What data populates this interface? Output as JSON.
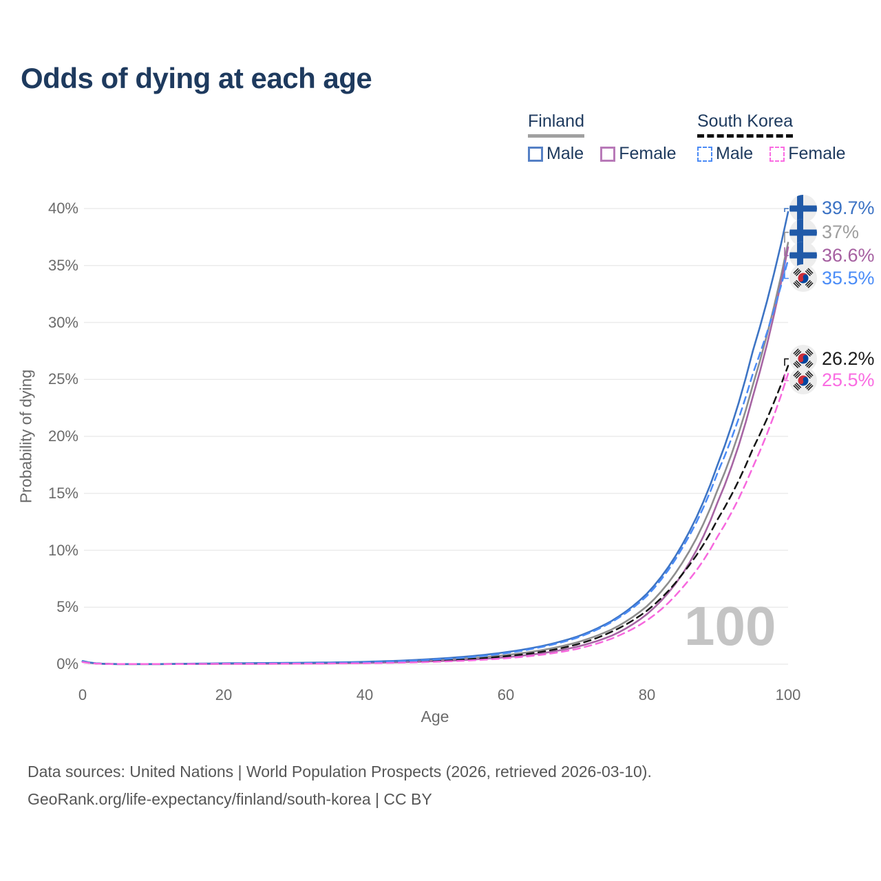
{
  "title": "Odds of dying at each age",
  "legend": {
    "finland": {
      "label": "Finland",
      "male_label": "Male",
      "female_label": "Female"
    },
    "south_korea": {
      "label": "South Korea",
      "male_label": "Male",
      "female_label": "Female"
    }
  },
  "watermark": "100",
  "footer": {
    "line1": "Data sources: United Nations | World Population Prospects (2026, retrieved 2026-03-10).",
    "line2": "GeoRank.org/life-expectancy/finland/south-korea | CC BY"
  },
  "colors": {
    "title_text": "#1e3a5e",
    "gridline": "#ebebeb",
    "tick_text": "#6b6b6b",
    "watermark": "#c4c4c4",
    "finland_male": "#3d74c4",
    "finland_total": "#8e8e8e",
    "finland_female": "#a765a4",
    "south_korea_male": "#4b8bf5",
    "south_korea_total": "#151515",
    "south_korea_female": "#f768de",
    "flag_circle_bg": "#ededed",
    "finland_flag_blue": "#215aa8",
    "korea_flag_red": "#cd2e3a",
    "korea_flag_blue": "#0047a0"
  },
  "chart_data": {
    "type": "line",
    "title": "Odds of dying at each age",
    "xlabel": "Age",
    "ylabel": "Probability of dying",
    "xlim": [
      0,
      100
    ],
    "ylim": [
      0,
      40
    ],
    "x_ticks": [
      0,
      20,
      40,
      60,
      80,
      100
    ],
    "y_tick_labels": [
      "0%",
      "5%",
      "10%",
      "15%",
      "20%",
      "25%",
      "30%",
      "35%",
      "40%"
    ],
    "legend_position": "top-right",
    "grid": "horizontal-only",
    "x": [
      0,
      5,
      10,
      15,
      20,
      25,
      30,
      35,
      40,
      45,
      50,
      55,
      60,
      65,
      70,
      75,
      80,
      85,
      90,
      95,
      100
    ],
    "series": [
      {
        "name": "Finland Male",
        "country": "Finland",
        "sex": "Male",
        "color": "#3d74c4",
        "dash": "solid",
        "flag": "finland",
        "end_label": "39.7%",
        "end_value": 39.7,
        "label_color": "#3b72c4",
        "values": [
          0.28,
          0.01,
          0.01,
          0.04,
          0.08,
          0.1,
          0.12,
          0.15,
          0.21,
          0.31,
          0.47,
          0.7,
          1.05,
          1.58,
          2.4,
          3.8,
          6.2,
          10.5,
          17.5,
          27.5,
          39.7
        ]
      },
      {
        "name": "Finland Total",
        "country": "Finland",
        "sex": "Total",
        "color": "#8e8e8e",
        "dash": "solid",
        "flag": "finland",
        "end_label": "37%",
        "end_value": 37.0,
        "label_color": "#9e9e9e",
        "values": [
          0.25,
          0.01,
          0.01,
          0.03,
          0.06,
          0.07,
          0.09,
          0.11,
          0.16,
          0.24,
          0.36,
          0.53,
          0.8,
          1.22,
          1.9,
          3.05,
          5.1,
          8.9,
          15.3,
          24.5,
          37.0
        ]
      },
      {
        "name": "Finland Female",
        "country": "Finland",
        "sex": "Female",
        "color": "#a765a4",
        "dash": "solid",
        "flag": "finland",
        "end_label": "36.6%",
        "end_value": 36.6,
        "label_color": "#a55fa0",
        "values": [
          0.22,
          0.01,
          0.01,
          0.02,
          0.03,
          0.04,
          0.05,
          0.07,
          0.11,
          0.17,
          0.26,
          0.4,
          0.61,
          0.95,
          1.52,
          2.5,
          4.4,
          7.9,
          14.2,
          23.5,
          36.6
        ]
      },
      {
        "name": "South Korea Male",
        "country": "South Korea",
        "sex": "Male",
        "color": "#4b8bf5",
        "dash": "dashed",
        "flag": "south-korea",
        "end_label": "35.5%",
        "end_value": 35.5,
        "label_color": "#4a8cf7",
        "values": [
          0.22,
          0.01,
          0.01,
          0.03,
          0.05,
          0.07,
          0.09,
          0.12,
          0.17,
          0.26,
          0.4,
          0.62,
          0.97,
          1.5,
          2.3,
          3.7,
          6.0,
          10.2,
          16.8,
          25.5,
          35.5
        ]
      },
      {
        "name": "South Korea Total",
        "country": "South Korea",
        "sex": "Total",
        "color": "#151515",
        "dash": "dashed",
        "flag": "south-korea",
        "end_label": "26.2%",
        "end_value": 26.2,
        "label_color": "#1c1c1c",
        "values": [
          0.2,
          0.01,
          0.01,
          0.02,
          0.04,
          0.05,
          0.06,
          0.08,
          0.12,
          0.19,
          0.29,
          0.45,
          0.7,
          1.08,
          1.72,
          2.85,
          4.7,
          7.9,
          12.7,
          18.9,
          26.2
        ]
      },
      {
        "name": "South Korea Female",
        "country": "South Korea",
        "sex": "Female",
        "color": "#f768de",
        "dash": "dashed",
        "flag": "south-korea",
        "end_label": "25.5%",
        "end_value": 25.5,
        "label_color": "#fa6ce2",
        "values": [
          0.18,
          0.01,
          0.01,
          0.02,
          0.03,
          0.03,
          0.04,
          0.06,
          0.08,
          0.13,
          0.21,
          0.33,
          0.52,
          0.82,
          1.33,
          2.25,
          3.85,
          6.7,
          11.2,
          17.3,
          25.5
        ]
      }
    ]
  }
}
